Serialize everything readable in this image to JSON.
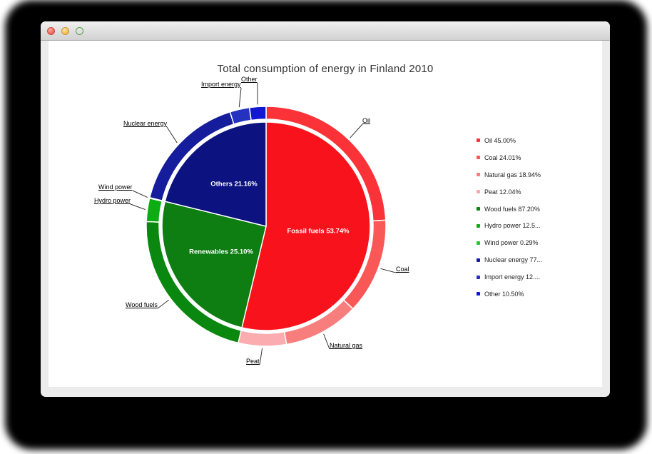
{
  "window": {
    "traffic_lights": [
      "close",
      "minimize",
      "zoom"
    ]
  },
  "chart_data": {
    "type": "pie",
    "subtype": "two-level-donut",
    "title": "Total consumption of energy in Finland 2010",
    "legend_position": "right",
    "inner": [
      {
        "name": "Fossil fuels",
        "value": 53.74,
        "label": "Fossil fuels 53.74%",
        "color": "#f8131c"
      },
      {
        "name": "Renewables",
        "value": 25.1,
        "label": "Renewables 25.10%",
        "color": "#0e7d12"
      },
      {
        "name": "Others",
        "value": 21.16,
        "label": "Others 21.16%",
        "color": "#0c1380"
      }
    ],
    "outer": [
      {
        "name": "Oil",
        "parent": "Fossil fuels",
        "percent_of_parent": 45.0,
        "color": "#fb3338",
        "legend_label": "Oil 45.00%"
      },
      {
        "name": "Coal",
        "parent": "Fossil fuels",
        "percent_of_parent": 24.01,
        "color": "#fa5757",
        "legend_label": "Coal 24.01%"
      },
      {
        "name": "Natural gas",
        "parent": "Fossil fuels",
        "percent_of_parent": 18.94,
        "color": "#f87e7e",
        "legend_label": "Natural gas 18.94%"
      },
      {
        "name": "Peat",
        "parent": "Fossil fuels",
        "percent_of_parent": 12.04,
        "color": "#fbacae",
        "legend_label": "Peat 12.04%"
      },
      {
        "name": "Wood fuels",
        "parent": "Renewables",
        "percent_of_parent": 87.2,
        "color": "#0a870e",
        "legend_label": "Wood fuels 87.20%"
      },
      {
        "name": "Hydro power",
        "parent": "Renewables",
        "percent_of_parent": 12.51,
        "color": "#0cad12",
        "legend_label": "Hydro power 12.5..."
      },
      {
        "name": "Wind power",
        "parent": "Renewables",
        "percent_of_parent": 0.29,
        "color": "#2fc42f",
        "legend_label": "Wind power 0.29%"
      },
      {
        "name": "Nuclear energy",
        "parent": "Others",
        "percent_of_parent": 77.0,
        "color": "#161d9c",
        "legend_label": "Nuclear energy 77..."
      },
      {
        "name": "Import energy",
        "parent": "Others",
        "percent_of_parent": 12.5,
        "color": "#2532c0",
        "legend_label": "Import energy 12...."
      },
      {
        "name": "Other",
        "parent": "Others",
        "percent_of_parent": 10.5,
        "color": "#1218d2",
        "legend_label": "Other 10.50%"
      }
    ]
  }
}
